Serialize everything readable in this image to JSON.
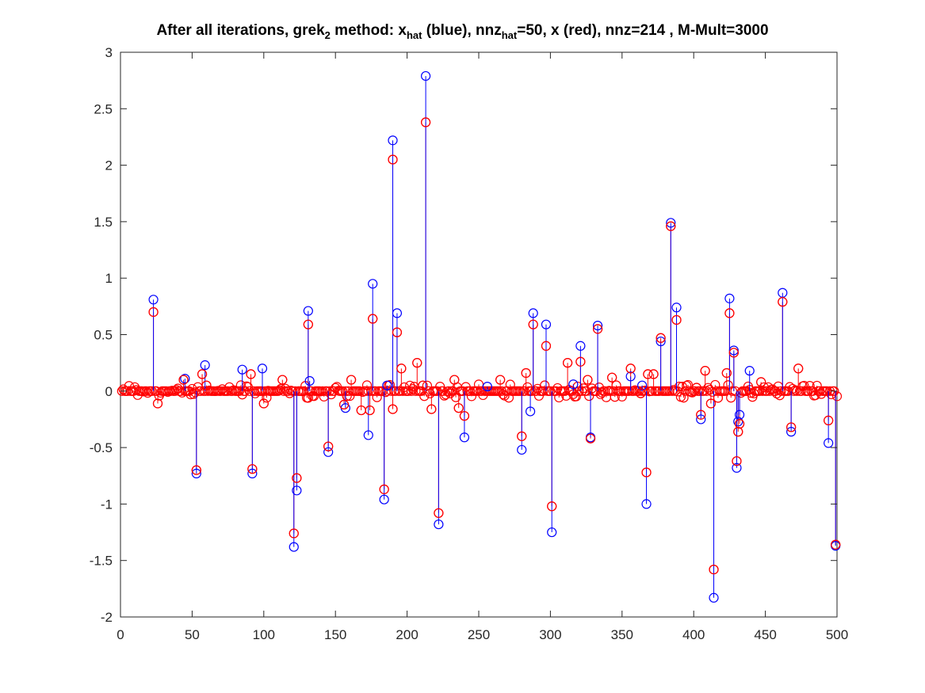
{
  "title": {
    "part1": "After all iterations, grek",
    "sub1": "2",
    "part2": " method: x",
    "sub2": "hat",
    "part3": " (blue), nnz",
    "sub3": "hat",
    "part4": "=50, x (red), nnz=214 , M-Mult=3000"
  },
  "chart_data": {
    "type": "stem",
    "title": "After all iterations, grek_2 method: x_hat (blue), nnz_hat=50, x (red), nnz=214 , M-Mult=3000",
    "xlim": [
      0,
      500
    ],
    "ylim": [
      -2,
      3
    ],
    "xticks": [
      0,
      50,
      100,
      150,
      200,
      250,
      300,
      350,
      400,
      450,
      500
    ],
    "yticks": [
      -2,
      -1.5,
      -1,
      -0.5,
      0,
      0.5,
      1,
      1.5,
      2,
      2.5,
      3
    ],
    "xtick_labels": [
      "0",
      "50",
      "100",
      "150",
      "200",
      "250",
      "300",
      "350",
      "400",
      "450",
      "500"
    ],
    "ytick_labels": [
      "-2",
      "-1.5",
      "-1",
      "-0.5",
      "0",
      "0.5",
      "1",
      "1.5",
      "2",
      "2.5",
      "3"
    ],
    "grid": false,
    "series": [
      {
        "color": "#0000ff",
        "points": [
          [
            23,
            0.81
          ],
          [
            45,
            0.11
          ],
          [
            53,
            -0.73
          ],
          [
            59,
            0.23
          ],
          [
            85,
            0.19
          ],
          [
            92,
            -0.73
          ],
          [
            99,
            0.2
          ],
          [
            121,
            -1.38
          ],
          [
            123,
            -0.88
          ],
          [
            131,
            0.71
          ],
          [
            132,
            0.09
          ],
          [
            145,
            -0.54
          ],
          [
            157,
            -0.15
          ],
          [
            173,
            -0.39
          ],
          [
            176,
            0.95
          ],
          [
            184,
            -0.96
          ],
          [
            190,
            2.22
          ],
          [
            193,
            0.69
          ],
          [
            213,
            2.79
          ],
          [
            222,
            -1.18
          ],
          [
            240,
            -0.41
          ],
          [
            280,
            -0.52
          ],
          [
            286,
            -0.18
          ],
          [
            288,
            0.69
          ],
          [
            297,
            0.59
          ],
          [
            301,
            -1.25
          ],
          [
            321,
            0.4
          ],
          [
            328,
            -0.41
          ],
          [
            333,
            0.58
          ],
          [
            356,
            0.13
          ],
          [
            364,
            0.05
          ],
          [
            367,
            -1.0
          ],
          [
            377,
            0.44
          ],
          [
            384,
            1.49
          ],
          [
            388,
            0.74
          ],
          [
            405,
            -0.25
          ],
          [
            414,
            -1.83
          ],
          [
            425,
            0.82
          ],
          [
            428,
            0.36
          ],
          [
            430,
            -0.68
          ],
          [
            432,
            -0.21
          ],
          [
            439,
            0.18
          ],
          [
            462,
            0.87
          ],
          [
            468,
            -0.36
          ],
          [
            494,
            -0.46
          ],
          [
            499,
            -1.37
          ],
          [
            431,
            -0.27
          ],
          [
            186,
            0.05
          ],
          [
            316,
            0.06
          ],
          [
            256,
            0.04
          ]
        ]
      },
      {
        "color": "#ff0000",
        "nonzero_points": [
          [
            23,
            0.7
          ],
          [
            53,
            -0.7
          ],
          [
            57,
            0.15
          ],
          [
            92,
            -0.69
          ],
          [
            91,
            0.15
          ],
          [
            121,
            -1.26
          ],
          [
            123,
            -0.77
          ],
          [
            131,
            0.59
          ],
          [
            145,
            -0.49
          ],
          [
            161,
            0.1
          ],
          [
            168,
            -0.17
          ],
          [
            174,
            -0.17
          ],
          [
            176,
            0.64
          ],
          [
            184,
            -0.87
          ],
          [
            190,
            2.05
          ],
          [
            193,
            0.52
          ],
          [
            196,
            0.2
          ],
          [
            190,
            -0.16
          ],
          [
            207,
            0.25
          ],
          [
            213,
            2.38
          ],
          [
            217,
            -0.16
          ],
          [
            222,
            -1.08
          ],
          [
            240,
            -0.22
          ],
          [
            236,
            -0.15
          ],
          [
            280,
            -0.4
          ],
          [
            283,
            0.16
          ],
          [
            288,
            0.59
          ],
          [
            297,
            0.4
          ],
          [
            301,
            -1.02
          ],
          [
            312,
            0.25
          ],
          [
            321,
            0.26
          ],
          [
            328,
            -0.42
          ],
          [
            333,
            0.55
          ],
          [
            356,
            0.2
          ],
          [
            367,
            -0.72
          ],
          [
            368,
            0.15
          ],
          [
            372,
            0.15
          ],
          [
            377,
            0.47
          ],
          [
            384,
            1.46
          ],
          [
            388,
            0.63
          ],
          [
            405,
            -0.21
          ],
          [
            408,
            0.18
          ],
          [
            414,
            -1.58
          ],
          [
            412,
            -0.11
          ],
          [
            423,
            0.16
          ],
          [
            425,
            0.69
          ],
          [
            428,
            0.34
          ],
          [
            430,
            -0.62
          ],
          [
            431,
            -0.36
          ],
          [
            432,
            -0.29
          ],
          [
            462,
            0.79
          ],
          [
            468,
            -0.32
          ],
          [
            473,
            0.2
          ],
          [
            494,
            -0.26
          ],
          [
            499,
            -1.36
          ],
          [
            26,
            -0.11
          ],
          [
            60,
            0.05
          ],
          [
            44,
            0.1
          ],
          [
            100,
            -0.11
          ],
          [
            113,
            0.1
          ],
          [
            131,
            -0.06
          ],
          [
            156,
            -0.12
          ],
          [
            211,
            0.05
          ],
          [
            233,
            0.1
          ],
          [
            265,
            0.1
          ],
          [
            326,
            0.1
          ],
          [
            343,
            0.12
          ],
          [
            363,
            -0.02
          ],
          [
            402,
            0.03
          ],
          [
            417,
            -0.06
          ],
          [
            447,
            0.08
          ]
        ],
        "small_amplitude_range": [
          -0.06,
          0.06
        ],
        "length": 500
      }
    ]
  }
}
